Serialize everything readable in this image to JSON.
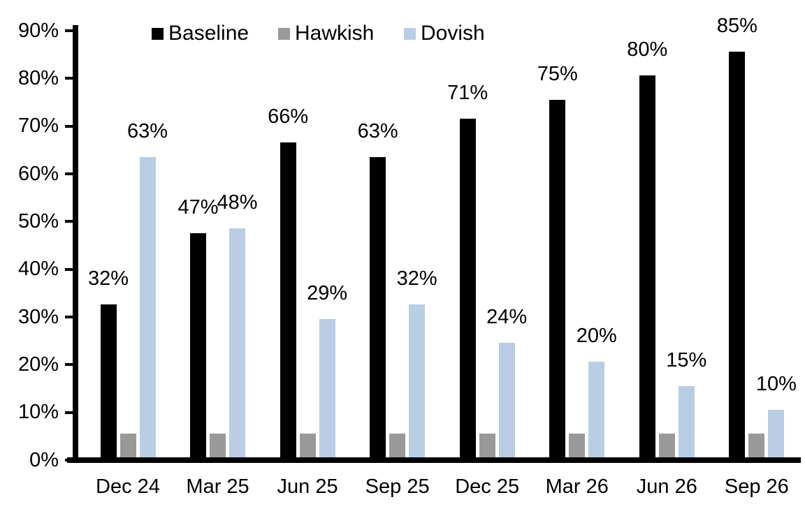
{
  "chart_data": {
    "type": "bar",
    "title": "",
    "categories": [
      "Dec 24",
      "Mar 25",
      "Jun 25",
      "Sep 25",
      "Dec 25",
      "Mar 26",
      "Jun 26",
      "Sep 26"
    ],
    "series": [
      {
        "name": "Baseline",
        "color": "#000000",
        "values": [
          32,
          47,
          66,
          63,
          71,
          75,
          80,
          85
        ],
        "labels": [
          "32%",
          "47%",
          "66%",
          "63%",
          "71%",
          "75%",
          "80%",
          "85%"
        ],
        "show_labels": true
      },
      {
        "name": "Hawkish",
        "color": "#999999",
        "values": [
          5,
          5,
          5,
          5,
          5,
          5,
          5,
          5
        ],
        "labels": [],
        "show_labels": false
      },
      {
        "name": "Dovish",
        "color": "#B9CDE5",
        "values": [
          63,
          48,
          29,
          32,
          24,
          20,
          15,
          10
        ],
        "labels": [
          "63%",
          "48%",
          "29%",
          "32%",
          "24%",
          "20%",
          "15%",
          "10%"
        ],
        "show_labels": true
      }
    ],
    "y_axis": {
      "min": 0,
      "max": 90,
      "step": 10,
      "tick_labels": [
        "0%",
        "10%",
        "20%",
        "30%",
        "40%",
        "50%",
        "60%",
        "70%",
        "80%",
        "90%"
      ]
    },
    "x_label": "",
    "y_label": "",
    "grid": false,
    "legend": {
      "position": "top",
      "items": [
        {
          "label": "Baseline",
          "color": "#000000"
        },
        {
          "label": "Hawkish",
          "color": "#999999"
        },
        {
          "label": "Dovish",
          "color": "#B9CDE5"
        }
      ]
    }
  }
}
